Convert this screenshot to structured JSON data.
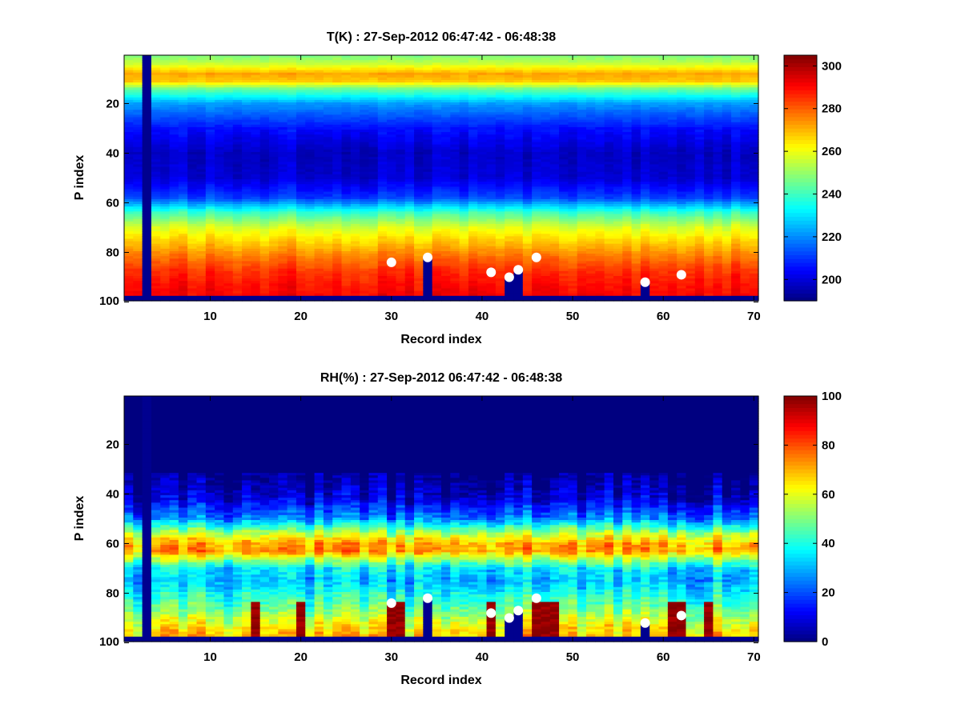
{
  "colormap": "jet",
  "marker_color": "#ffffff",
  "missing_color": "#00008f",
  "chart_data": [
    {
      "type": "heatmap",
      "title": "T(K) : 27-Sep-2012 06:47:42 - 06:48:38",
      "xlabel": "Record index",
      "ylabel": "P index",
      "xlim": [
        0.5,
        70.5
      ],
      "ylim": [
        0.5,
        99.5
      ],
      "y_reversed": true,
      "xticks": [
        10,
        20,
        30,
        40,
        50,
        60,
        70
      ],
      "yticks": [
        20,
        40,
        60,
        80,
        100
      ],
      "n_records": 70,
      "n_levels": 99,
      "missing_records": [
        3
      ],
      "missing_bottom_rows": 2,
      "gaps": [
        {
          "record": 34,
          "from_level": 82
        },
        {
          "record": 43,
          "from_level": 90
        },
        {
          "record": 44,
          "from_level": 87
        },
        {
          "record": 58,
          "from_level": 92
        }
      ],
      "markers": [
        {
          "x": 30,
          "y": 84
        },
        {
          "x": 34,
          "y": 82
        },
        {
          "x": 41,
          "y": 88
        },
        {
          "x": 43,
          "y": 90
        },
        {
          "x": 44,
          "y": 87
        },
        {
          "x": 46,
          "y": 82
        },
        {
          "x": 58,
          "y": 92
        },
        {
          "x": 62,
          "y": 89
        }
      ],
      "profile": [
        [
          1,
          248
        ],
        [
          4,
          256
        ],
        [
          8,
          272
        ],
        [
          11,
          268
        ],
        [
          14,
          246
        ],
        [
          20,
          222
        ],
        [
          30,
          206
        ],
        [
          40,
          198
        ],
        [
          50,
          200
        ],
        [
          58,
          212
        ],
        [
          64,
          240
        ],
        [
          70,
          258
        ],
        [
          76,
          268
        ],
        [
          82,
          278
        ],
        [
          88,
          286
        ],
        [
          94,
          290
        ],
        [
          99,
          292
        ]
      ],
      "colorbar": {
        "min": 190,
        "max": 305,
        "ticks": [
          200,
          220,
          240,
          260,
          280,
          300
        ]
      }
    },
    {
      "type": "heatmap",
      "title": "RH(%) : 27-Sep-2012 06:47:42 - 06:48:38",
      "xlabel": "Record index",
      "ylabel": "P index",
      "xlim": [
        0.5,
        70.5
      ],
      "ylim": [
        0.5,
        99.5
      ],
      "y_reversed": true,
      "xticks": [
        10,
        20,
        30,
        40,
        50,
        60,
        70
      ],
      "yticks": [
        20,
        40,
        60,
        80,
        100
      ],
      "n_records": 70,
      "n_levels": 99,
      "missing_records": [
        3
      ],
      "missing_bottom_rows": 2,
      "gaps": [
        {
          "record": 34,
          "from_level": 82
        },
        {
          "record": 43,
          "from_level": 90
        },
        {
          "record": 44,
          "from_level": 87
        },
        {
          "record": 58,
          "from_level": 92
        }
      ],
      "markers": [
        {
          "x": 30,
          "y": 84
        },
        {
          "x": 34,
          "y": 82
        },
        {
          "x": 41,
          "y": 88
        },
        {
          "x": 43,
          "y": 90
        },
        {
          "x": 44,
          "y": 87
        },
        {
          "x": 46,
          "y": 82
        },
        {
          "x": 58,
          "y": 92
        },
        {
          "x": 62,
          "y": 89
        }
      ],
      "profile": [
        [
          1,
          0
        ],
        [
          32,
          0
        ],
        [
          42,
          8
        ],
        [
          50,
          25
        ],
        [
          56,
          55
        ],
        [
          60,
          70
        ],
        [
          63,
          72
        ],
        [
          66,
          55
        ],
        [
          70,
          35
        ],
        [
          75,
          30
        ],
        [
          80,
          38
        ],
        [
          85,
          45
        ],
        [
          90,
          55
        ],
        [
          95,
          65
        ],
        [
          99,
          70
        ]
      ],
      "wet_columns": [
        15,
        20,
        30,
        31,
        41,
        46,
        47,
        48,
        61,
        62,
        65
      ],
      "wet_from_level": 84,
      "colorbar": {
        "min": 0,
        "max": 100,
        "ticks": [
          0,
          20,
          40,
          60,
          80,
          100
        ]
      }
    }
  ]
}
